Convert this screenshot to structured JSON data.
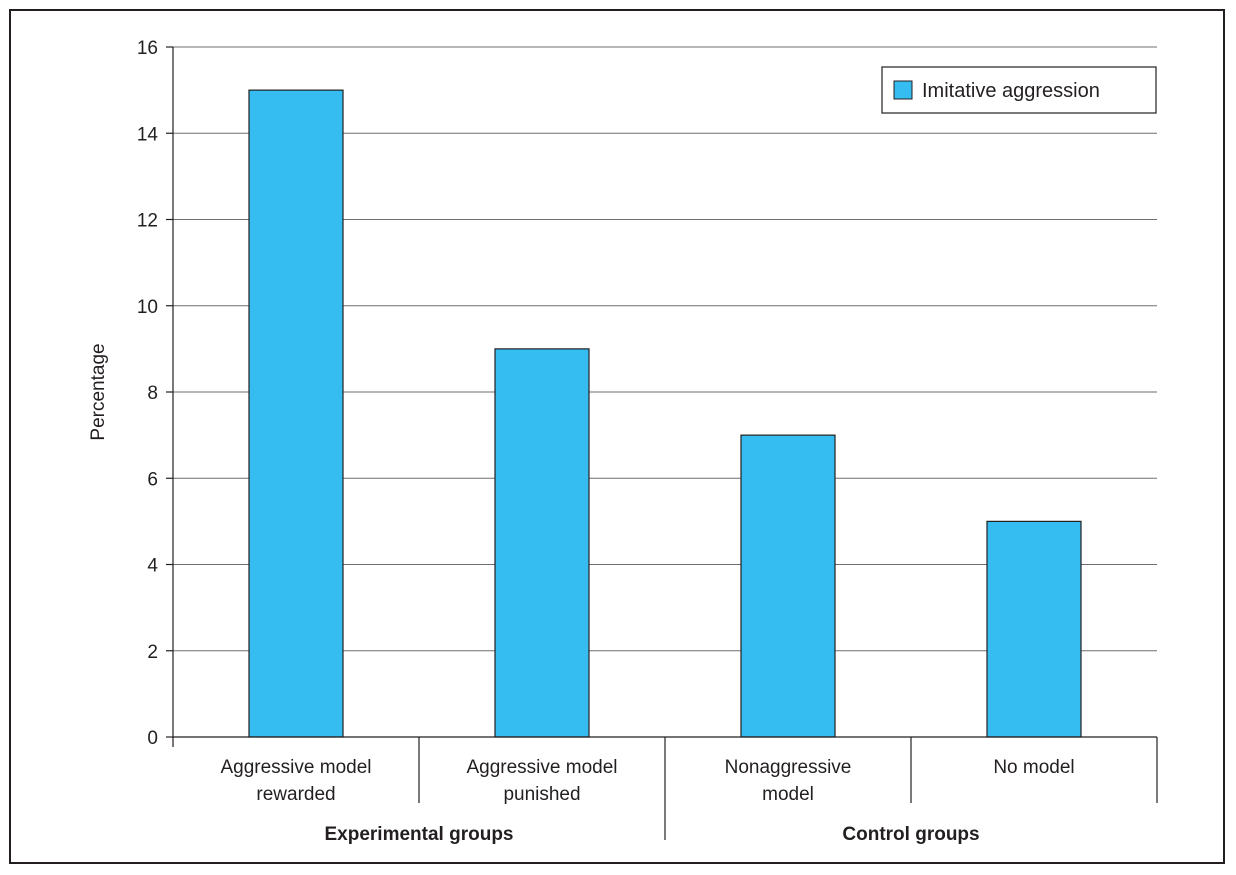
{
  "chart_data": {
    "type": "bar",
    "title": "",
    "xlabel": "",
    "ylabel": "Percentage",
    "ylim": [
      0,
      16
    ],
    "yticks": [
      0,
      2,
      4,
      6,
      8,
      10,
      12,
      14,
      16
    ],
    "grid": "horizontal",
    "legend_position": "top-right",
    "categories": [
      [
        "Aggressive model",
        "rewarded"
      ],
      [
        "Aggressive model",
        "punished"
      ],
      [
        "Nonaggressive",
        "model"
      ],
      [
        "No model"
      ]
    ],
    "groups": [
      {
        "label": "Experimental groups",
        "categories": [
          0,
          1
        ]
      },
      {
        "label": "Control groups",
        "categories": [
          2,
          3
        ]
      }
    ],
    "series": [
      {
        "name": "Imitative aggression",
        "values": [
          15,
          9,
          7,
          5
        ],
        "color": "#35bcf0"
      }
    ]
  }
}
